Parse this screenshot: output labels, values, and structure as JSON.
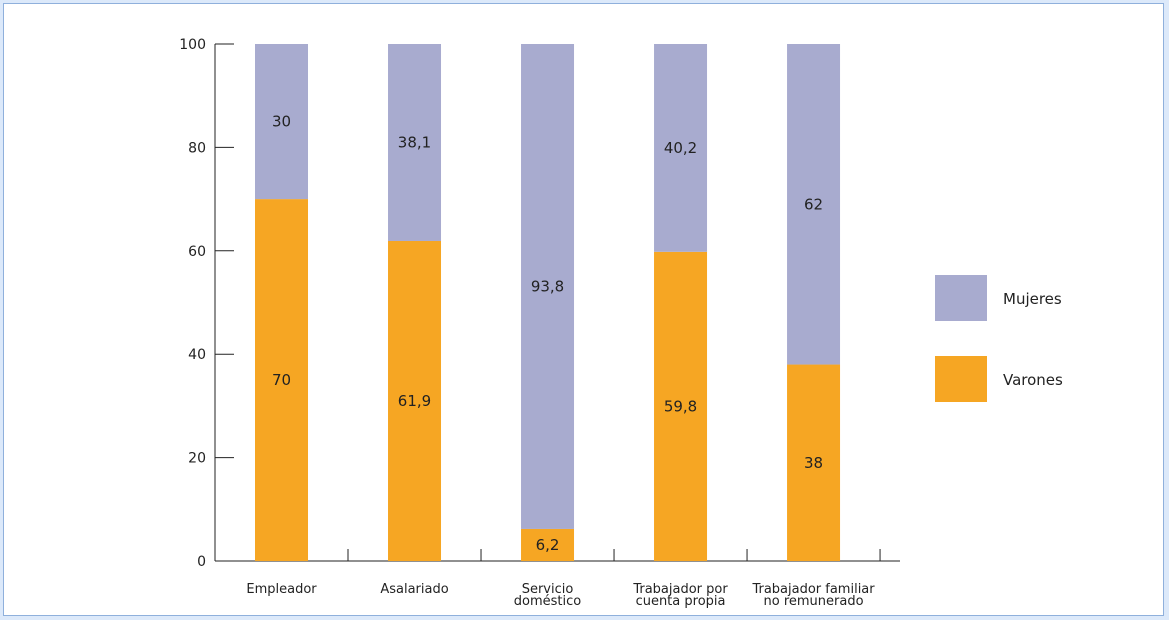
{
  "chart_data": {
    "type": "bar",
    "stacked": true,
    "categories": [
      [
        "Empleador"
      ],
      [
        "Asalariado"
      ],
      [
        "Servicio",
        "doméstico"
      ],
      [
        "Trabajador por",
        "cuenta propia"
      ],
      [
        "Trabajador familiar",
        "no remunerado"
      ]
    ],
    "series": [
      {
        "name": "Varones",
        "color": "#f6a623",
        "values": [
          70,
          61.9,
          6.2,
          59.8,
          38
        ],
        "labels": [
          "70",
          "61,9",
          "6,2",
          "59,8",
          "38"
        ]
      },
      {
        "name": "Mujeres",
        "color": "#a8abcf",
        "values": [
          30,
          38.1,
          93.8,
          40.2,
          62
        ],
        "labels": [
          "30",
          "38,1",
          "93,8",
          "40,2",
          "62"
        ]
      }
    ],
    "yticks": [
      0,
      20,
      40,
      60,
      80,
      100
    ],
    "ylim": [
      0,
      100
    ],
    "grid": false,
    "legend_position": "right",
    "legend_order": [
      "Mujeres",
      "Varones"
    ]
  }
}
